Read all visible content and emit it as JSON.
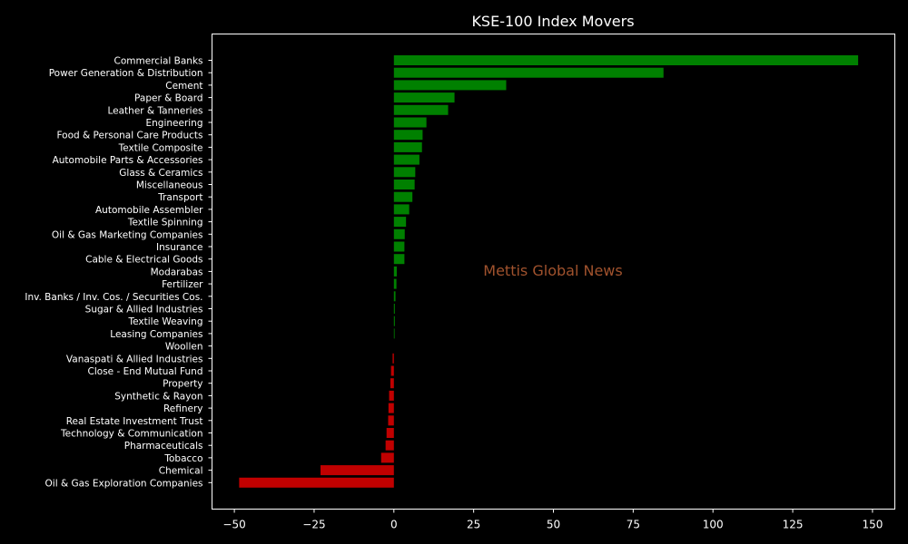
{
  "chart_data": {
    "type": "bar",
    "orientation": "horizontal",
    "title": "KSE-100 Index Movers",
    "watermark": "Mettis Global News",
    "xlabel": "",
    "ylabel": "",
    "xlim": [
      -57,
      157
    ],
    "xticks": [
      -50,
      -25,
      0,
      25,
      50,
      75,
      100,
      125,
      150
    ],
    "xtick_labels": [
      "−50",
      "−25",
      "0",
      "25",
      "50",
      "75",
      "100",
      "125",
      "150"
    ],
    "grid": false,
    "legend": "none",
    "colors": {
      "positive": "#008000",
      "negative": "#c00000",
      "background": "#000000",
      "text": "#ffffff",
      "watermark": "#a0522d"
    },
    "categories": [
      "Commercial Banks",
      "Power Generation & Distribution",
      "Cement",
      "Paper & Board",
      "Leather & Tanneries",
      "Engineering",
      "Food & Personal Care Products",
      "Textile Composite",
      "Automobile Parts & Accessories",
      "Glass & Ceramics",
      "Miscellaneous",
      "Transport",
      "Automobile Assembler",
      "Textile Spinning",
      "Oil & Gas Marketing Companies",
      "Insurance",
      "Cable & Electrical Goods",
      "Modarabas",
      "Fertilizer",
      "Inv. Banks / Inv. Cos. / Securities Cos.",
      "Sugar & Allied Industries",
      "Textile Weaving",
      "Leasing Companies",
      "Woollen",
      "Vanaspati & Allied Industries",
      "Close - End Mutual Fund",
      "Property",
      "Synthetic & Rayon",
      "Refinery",
      "Real Estate Investment Trust",
      "Technology & Communication",
      "Pharmaceuticals",
      "Tobacco",
      "Chemical",
      "Oil & Gas Exploration Companies"
    ],
    "values": [
      145.5,
      84.5,
      35.2,
      19.0,
      17.0,
      10.2,
      9.0,
      8.8,
      8.0,
      6.7,
      6.5,
      5.8,
      4.8,
      3.8,
      3.4,
      3.3,
      3.3,
      0.9,
      0.8,
      0.5,
      0.3,
      0.3,
      0.2,
      0.0,
      -0.4,
      -0.9,
      -1.1,
      -1.5,
      -1.7,
      -1.8,
      -2.3,
      -2.6,
      -4.0,
      -23.0,
      -48.5
    ]
  }
}
